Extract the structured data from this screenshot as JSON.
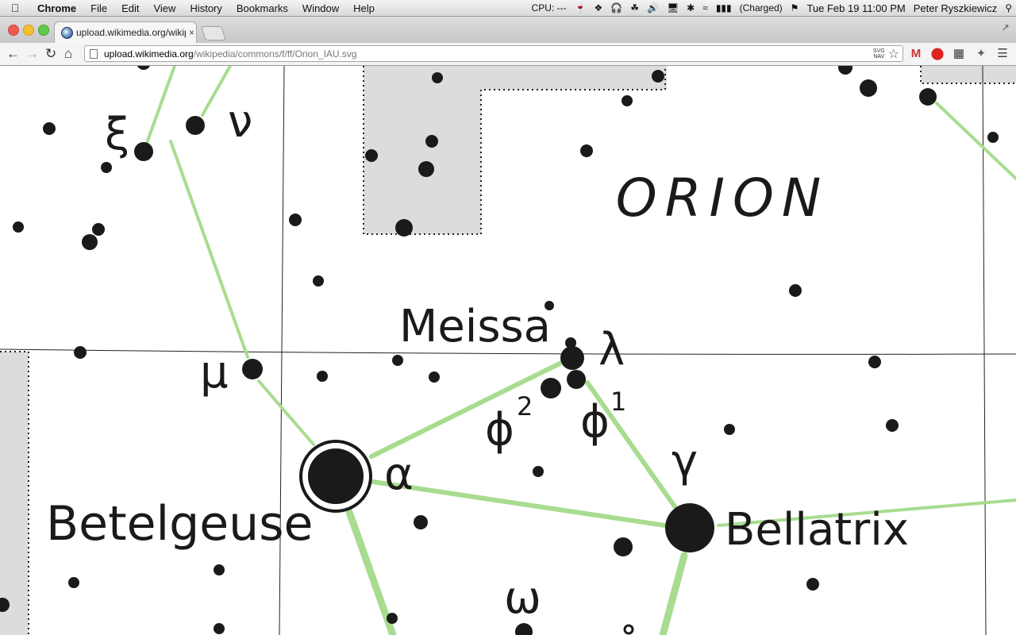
{
  "menubar": {
    "app_name": "Chrome",
    "items": [
      "File",
      "Edit",
      "View",
      "History",
      "Bookmarks",
      "Window",
      "Help"
    ],
    "cpu": "CPU: ---",
    "battery": "(Charged)",
    "clock": "Tue Feb 19  11:00 PM",
    "user": "Peter Ryszkiewicz"
  },
  "tab": {
    "title": "upload.wikimedia.org/wikipe",
    "close_glyph": "×"
  },
  "omnibox": {
    "host": "upload.wikimedia.org",
    "path": "/wikipedia/commons/f/ff/Orion_IAU.svg",
    "svg_nav_line1": "SVG",
    "svg_nav_line2": "NAV"
  },
  "chart_labels": {
    "constellation": "ORION",
    "meissa": "Meissa",
    "betelgeuse": "Betelgeuse",
    "bellatrix": "Bellatrix",
    "xi": "ξ",
    "nu": "ν",
    "mu": "μ",
    "alpha": "α",
    "lambda": "λ",
    "phi": "ϕ",
    "phi2_sup": "2",
    "phi1_sup": "1",
    "gamma": "γ",
    "omega": "ω"
  },
  "colors": {
    "constellation_line": "#a8dc90",
    "boundary_fill": "#dcdcdc",
    "star": "#1a1a1a"
  }
}
